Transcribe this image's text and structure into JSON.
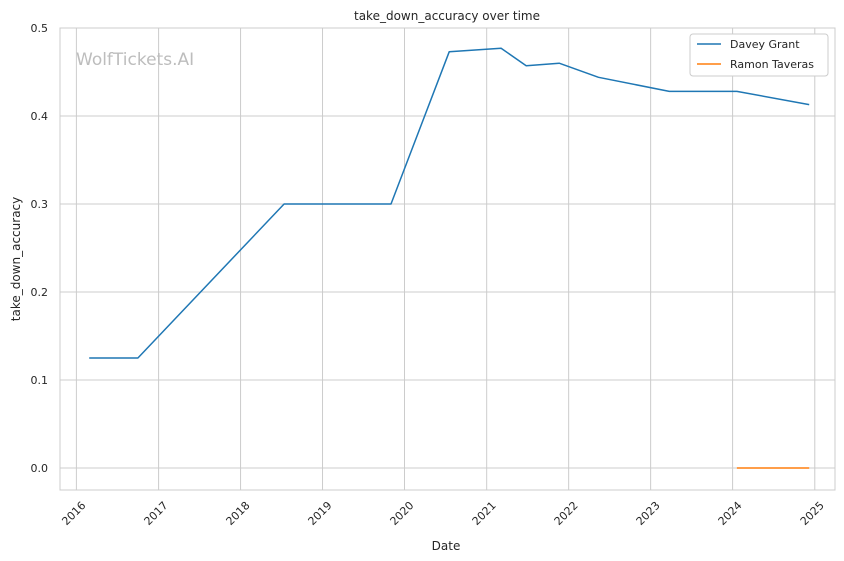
{
  "chart_data": {
    "type": "line",
    "title": "take_down_accuracy over time",
    "xlabel": "Date",
    "ylabel": "take_down_accuracy",
    "watermark": "WolfTickets.AI",
    "xlim": [
      "2015-10-20",
      "2025-04-01"
    ],
    "ylim": [
      -0.025,
      0.5
    ],
    "x_ticks": [
      "2016",
      "2017",
      "2018",
      "2019",
      "2020",
      "2021",
      "2022",
      "2023",
      "2024",
      "2025"
    ],
    "y_ticks": [
      "0.0",
      "0.1",
      "0.2",
      "0.3",
      "0.4",
      "0.5"
    ],
    "grid": true,
    "legend_position": "top-right",
    "series": [
      {
        "name": "Davey Grant",
        "color": "#1f77b4",
        "points": [
          {
            "x": "2016-02-27",
            "y": 0.125
          },
          {
            "x": "2016-10-01",
            "y": 0.125
          },
          {
            "x": "2018-07-14",
            "y": 0.3
          },
          {
            "x": "2019-11-02",
            "y": 0.3
          },
          {
            "x": "2020-07-18",
            "y": 0.473
          },
          {
            "x": "2021-03-06",
            "y": 0.477
          },
          {
            "x": "2021-06-26",
            "y": 0.457
          },
          {
            "x": "2021-11-20",
            "y": 0.46
          },
          {
            "x": "2022-05-14",
            "y": 0.444
          },
          {
            "x": "2023-03-25",
            "y": 0.428
          },
          {
            "x": "2024-01-20",
            "y": 0.428
          },
          {
            "x": "2024-12-07",
            "y": 0.413
          }
        ]
      },
      {
        "name": "Ramon Taveras",
        "color": "#ff7f0e",
        "points": [
          {
            "x": "2024-01-20",
            "y": 0.0
          },
          {
            "x": "2024-12-07",
            "y": 0.0
          }
        ]
      }
    ]
  }
}
